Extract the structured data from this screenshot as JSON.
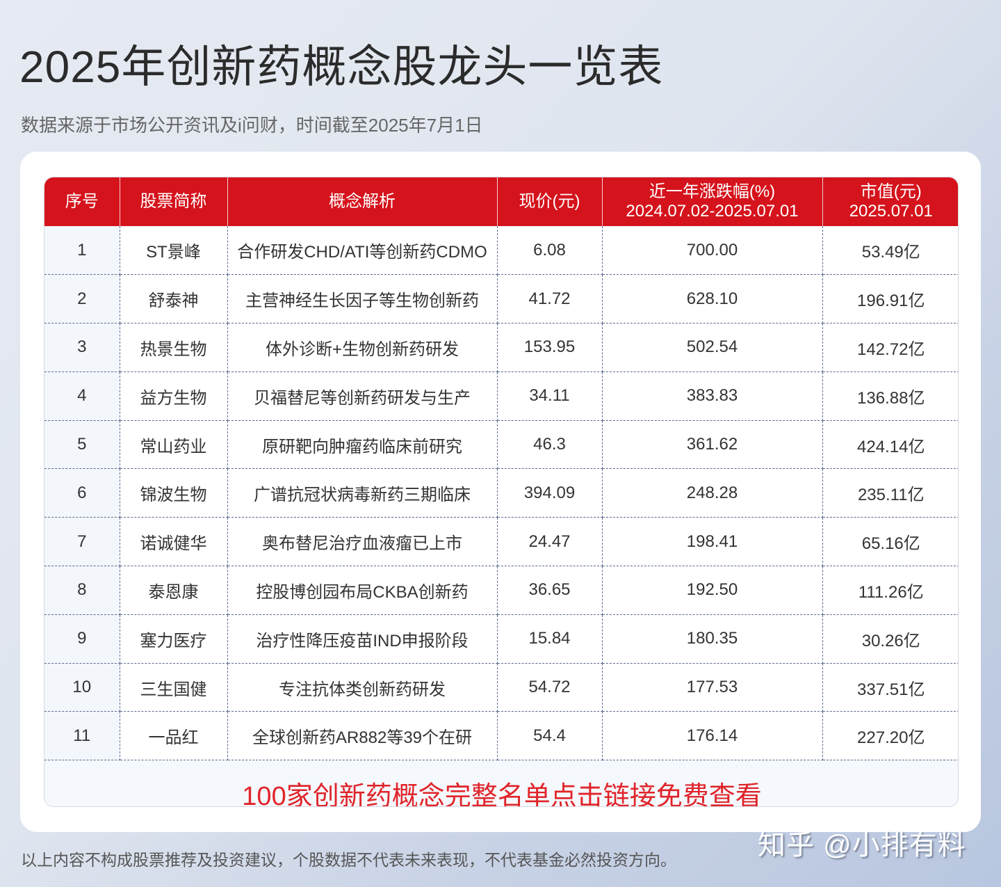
{
  "header": {
    "title": "2025年创新药概念股龙头一览表",
    "subtitle": "数据来源于市场公开资讯及i问财，时间截至2025年7月1日"
  },
  "colors": {
    "header_red": "#d5131c",
    "link_red": "#e0242a",
    "index_col_bg": "#f3f6fb"
  },
  "table": {
    "columns": [
      {
        "line1": "序号",
        "line2": ""
      },
      {
        "line1": "股票简称",
        "line2": ""
      },
      {
        "line1": "概念解析",
        "line2": ""
      },
      {
        "line1": "现价(元)",
        "line2": ""
      },
      {
        "line1": "近一年涨跌幅(%)",
        "line2": "2024.07.02-2025.07.01"
      },
      {
        "line1": "市值(元)",
        "line2": "2025.07.01"
      }
    ],
    "rows": [
      {
        "idx": "1",
        "name": "ST景峰",
        "concept": "合作研发CHD/ATI等创新药CDMO",
        "price": "6.08",
        "change": "700.00",
        "mcap": "53.49亿"
      },
      {
        "idx": "2",
        "name": "舒泰神",
        "concept": "主营神经生长因子等生物创新药",
        "price": "41.72",
        "change": "628.10",
        "mcap": "196.91亿"
      },
      {
        "idx": "3",
        "name": "热景生物",
        "concept": "体外诊断+生物创新药研发",
        "price": "153.95",
        "change": "502.54",
        "mcap": "142.72亿"
      },
      {
        "idx": "4",
        "name": "益方生物",
        "concept": "贝福替尼等创新药研发与生产",
        "price": "34.11",
        "change": "383.83",
        "mcap": "136.88亿"
      },
      {
        "idx": "5",
        "name": "常山药业",
        "concept": "原研靶向肿瘤药临床前研究",
        "price": "46.3",
        "change": "361.62",
        "mcap": "424.14亿"
      },
      {
        "idx": "6",
        "name": "锦波生物",
        "concept": "广谱抗冠状病毒新药三期临床",
        "price": "394.09",
        "change": "248.28",
        "mcap": "235.11亿"
      },
      {
        "idx": "7",
        "name": "诺诚健华",
        "concept": "奥布替尼治疗血液瘤已上市",
        "price": "24.47",
        "change": "198.41",
        "mcap": "65.16亿"
      },
      {
        "idx": "8",
        "name": "泰恩康",
        "concept": "控股博创园布局CKBA创新药",
        "price": "36.65",
        "change": "192.50",
        "mcap": "111.26亿"
      },
      {
        "idx": "9",
        "name": "塞力医疗",
        "concept": "治疗性降压疫苗IND申报阶段",
        "price": "15.84",
        "change": "180.35",
        "mcap": "30.26亿"
      },
      {
        "idx": "10",
        "name": "三生国健",
        "concept": "专注抗体类创新药研发",
        "price": "54.72",
        "change": "177.53",
        "mcap": "337.51亿"
      },
      {
        "idx": "11",
        "name": "一品红",
        "concept": "全球创新药AR882等39个在研",
        "price": "54.4",
        "change": "176.14",
        "mcap": "227.20亿"
      }
    ],
    "footer_link": "100家创新药概念完整名单点击链接免费查看"
  },
  "footer": {
    "disclaimer": "以上内容不构成股票推荐及投资建议，个股数据不代表未来表现，不代表基金必然投资方向。",
    "watermark": "知乎 @小排有料"
  }
}
